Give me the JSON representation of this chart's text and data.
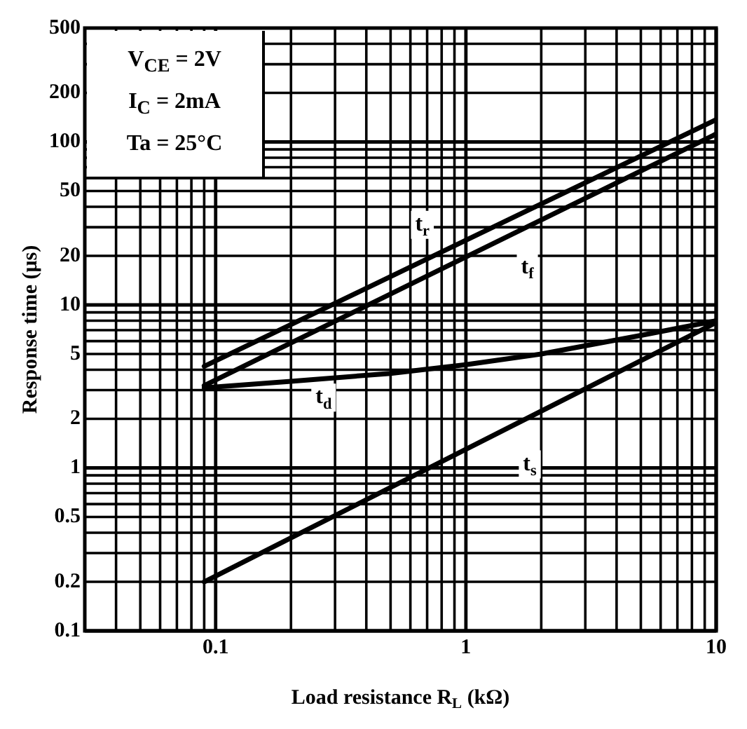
{
  "chart_data": {
    "type": "line",
    "xlabel": "Load resistance R$_{L}$ (kΩ)",
    "ylabel": "Response time (μs)",
    "log": "xy",
    "grid": true,
    "legend": false,
    "marker": "none",
    "line_style": "solid",
    "xlim": [
      0.03,
      10
    ],
    "xticks": [
      0.1,
      1,
      10
    ],
    "ylim": [
      0.1,
      500
    ],
    "yticks": [
      0.1,
      0.2,
      0.5,
      1,
      2,
      5,
      10,
      20,
      50,
      100,
      200,
      500
    ],
    "series": [
      {
        "color": "#000000",
        "x": [
          0.09,
          10
        ],
        "values": [
          4.2,
          137
        ]
      },
      {
        "color": "#000000",
        "x": [
          0.09,
          10
        ],
        "values": [
          3.2,
          112
        ]
      },
      {
        "color": "#000000",
        "x": [
          0.09,
          0.2,
          0.5,
          1,
          2,
          5,
          10
        ],
        "values": [
          3.1,
          3.4,
          3.8,
          4.3,
          5,
          6.5,
          8
        ]
      },
      {
        "color": "#000000",
        "x": [
          0.09,
          10
        ],
        "values": [
          0.2,
          7.8
        ]
      }
    ],
    "annotations": [
      "V$_{CE}$ = 2V",
      "I$_{C}$ = 2mA",
      "Ta = 25°C",
      {
        "text": "t$_{r}$",
        "x": 0.67,
        "y": 31
      },
      {
        "text": "t$_{f}$",
        "x": 1.76,
        "y": 17
      },
      {
        "text": "t$_{d}$",
        "x": 0.27,
        "y": 2.7
      },
      {
        "text": "t$_{s}$",
        "x": 1.8,
        "y": 1.05
      }
    ]
  }
}
